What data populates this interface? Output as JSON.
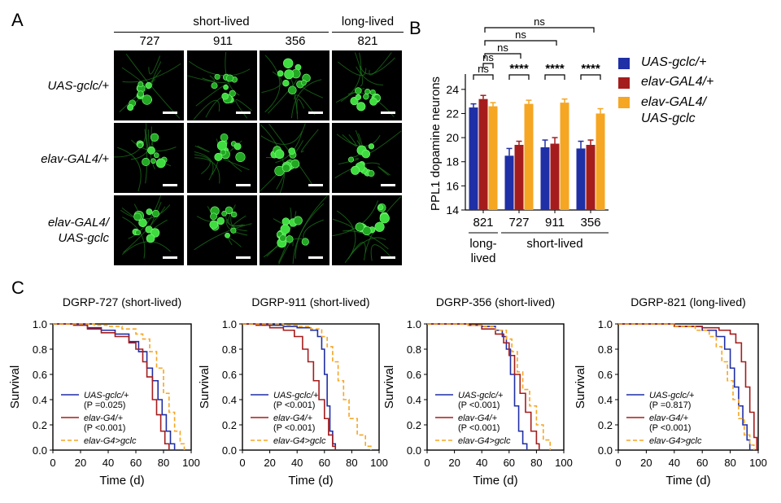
{
  "panels": {
    "a": "A",
    "b": "B",
    "c": "C"
  },
  "panelA": {
    "group_short": "short-lived",
    "group_long": "long-lived",
    "strains": [
      "727",
      "911",
      "356",
      "821"
    ],
    "rows": [
      "UAS-gclc/+",
      "elav-GAL4/+",
      "elav-GAL4/\nUAS-gclc"
    ]
  },
  "colors": {
    "uas": "#1f2fa6",
    "elav": "#a51c1c",
    "cross": "#f5a623"
  },
  "chart_data": [
    {
      "type": "bar",
      "panel": "B",
      "ylabel": "PPL1 dopamine neurons",
      "ylim": [
        14,
        25
      ],
      "yticks": [
        14,
        16,
        18,
        20,
        22,
        24
      ],
      "categories": [
        "821",
        "727",
        "911",
        "356"
      ],
      "group_labels": [
        {
          "label": "long-\nlived",
          "categories": [
            "821"
          ]
        },
        {
          "label": "short-lived",
          "categories": [
            "727",
            "911",
            "356"
          ]
        }
      ],
      "series": [
        {
          "name": "UAS-gclc/+",
          "values": [
            22.5,
            18.5,
            19.2,
            19.1
          ],
          "err": [
            0.3,
            0.6,
            0.6,
            0.6
          ]
        },
        {
          "name": "elav-GAL4/+",
          "values": [
            23.2,
            19.4,
            19.5,
            19.4
          ],
          "err": [
            0.3,
            0.3,
            0.5,
            0.4
          ]
        },
        {
          "name": "elav-GAL4/\nUAS-gclc",
          "values": [
            22.6,
            22.8,
            22.9,
            22.0
          ],
          "err": [
            0.3,
            0.3,
            0.3,
            0.4
          ]
        }
      ],
      "annotations": [
        "ns",
        "ns",
        "****",
        "****",
        "****",
        "ns",
        "ns",
        "ns"
      ]
    },
    {
      "type": "line",
      "panel": "C1",
      "title": "DGRP-727 (short-lived)",
      "xlabel": "Time  (d)",
      "ylabel": "Survival",
      "xlim": [
        0,
        100
      ],
      "ylim": [
        0,
        1.0
      ],
      "xticks": [
        0,
        20,
        40,
        60,
        80,
        100
      ],
      "yticks": [
        0.0,
        0.2,
        0.4,
        0.6,
        0.8,
        1.0
      ],
      "legend": [
        "UAS-gclc/+",
        "(P =0.025)",
        "elav-G4/+",
        "(P <0.001)",
        "elav-G4>gclc"
      ],
      "series": [
        {
          "name": "UAS-gclc/+",
          "points": [
            [
              0,
              1
            ],
            [
              15,
              1
            ],
            [
              25,
              0.97
            ],
            [
              35,
              0.95
            ],
            [
              45,
              0.92
            ],
            [
              55,
              0.86
            ],
            [
              62,
              0.78
            ],
            [
              68,
              0.65
            ],
            [
              72,
              0.55
            ],
            [
              76,
              0.4
            ],
            [
              79,
              0.28
            ],
            [
              82,
              0.15
            ],
            [
              85,
              0.05
            ],
            [
              88,
              0
            ]
          ]
        },
        {
          "name": "elav-G4/+",
          "points": [
            [
              0,
              1
            ],
            [
              15,
              0.99
            ],
            [
              25,
              0.96
            ],
            [
              35,
              0.93
            ],
            [
              45,
              0.9
            ],
            [
              55,
              0.85
            ],
            [
              60,
              0.8
            ],
            [
              65,
              0.7
            ],
            [
              68,
              0.58
            ],
            [
              72,
              0.4
            ],
            [
              75,
              0.28
            ],
            [
              78,
              0.15
            ],
            [
              81,
              0.05
            ],
            [
              84,
              0
            ]
          ]
        },
        {
          "name": "elav-G4>gclc",
          "points": [
            [
              0,
              1
            ],
            [
              20,
              1
            ],
            [
              30,
              0.99
            ],
            [
              40,
              0.98
            ],
            [
              50,
              0.96
            ],
            [
              60,
              0.92
            ],
            [
              65,
              0.88
            ],
            [
              70,
              0.78
            ],
            [
              75,
              0.65
            ],
            [
              80,
              0.45
            ],
            [
              84,
              0.3
            ],
            [
              88,
              0.15
            ],
            [
              92,
              0.05
            ],
            [
              95,
              0
            ]
          ]
        }
      ]
    },
    {
      "type": "line",
      "panel": "C2",
      "title": "DGRP-911 (short-lived)",
      "xlabel": "Time  (d)",
      "ylabel": "Survival",
      "xlim": [
        0,
        100
      ],
      "ylim": [
        0,
        1.0
      ],
      "xticks": [
        0,
        20,
        40,
        60,
        80,
        100
      ],
      "yticks": [
        0.0,
        0.2,
        0.4,
        0.6,
        0.8,
        1.0
      ],
      "legend": [
        "UAS-gclc/+",
        "(P <0.001)",
        "elav-G4/+",
        "(P <0.001)",
        "elav-G4>gclc"
      ],
      "series": [
        {
          "name": "UAS-gclc/+",
          "points": [
            [
              0,
              1
            ],
            [
              10,
              1
            ],
            [
              20,
              0.99
            ],
            [
              30,
              0.98
            ],
            [
              40,
              0.97
            ],
            [
              50,
              0.95
            ],
            [
              55,
              0.9
            ],
            [
              58,
              0.8
            ],
            [
              60,
              0.6
            ],
            [
              62,
              0.35
            ],
            [
              64,
              0.15
            ],
            [
              66,
              0.05
            ],
            [
              68,
              0
            ]
          ]
        },
        {
          "name": "elav-G4/+",
          "points": [
            [
              0,
              1
            ],
            [
              10,
              0.99
            ],
            [
              20,
              0.97
            ],
            [
              30,
              0.95
            ],
            [
              38,
              0.9
            ],
            [
              44,
              0.8
            ],
            [
              48,
              0.7
            ],
            [
              52,
              0.55
            ],
            [
              56,
              0.4
            ],
            [
              60,
              0.25
            ],
            [
              63,
              0.12
            ],
            [
              66,
              0.03
            ],
            [
              68,
              0
            ]
          ]
        },
        {
          "name": "elav-G4>gclc",
          "points": [
            [
              0,
              1
            ],
            [
              20,
              1
            ],
            [
              30,
              0.99
            ],
            [
              40,
              0.98
            ],
            [
              50,
              0.96
            ],
            [
              58,
              0.9
            ],
            [
              62,
              0.82
            ],
            [
              66,
              0.7
            ],
            [
              70,
              0.55
            ],
            [
              74,
              0.4
            ],
            [
              78,
              0.25
            ],
            [
              84,
              0.12
            ],
            [
              90,
              0.03
            ],
            [
              94,
              0
            ]
          ]
        }
      ]
    },
    {
      "type": "line",
      "panel": "C3",
      "title": "DGRP-356 (short-lived)",
      "xlabel": "Time  (d)",
      "ylabel": "Survival",
      "xlim": [
        0,
        100
      ],
      "ylim": [
        0,
        1.0
      ],
      "xticks": [
        0,
        20,
        40,
        60,
        80,
        100
      ],
      "yticks": [
        0.0,
        0.2,
        0.4,
        0.6,
        0.8,
        1.0
      ],
      "legend": [
        "UAS-gclc/+",
        "(P <0.001)",
        "elav-G4/+",
        "(P <0.001)",
        "elav-G4>gclc"
      ],
      "series": [
        {
          "name": "UAS-gclc/+",
          "points": [
            [
              0,
              1
            ],
            [
              20,
              1
            ],
            [
              30,
              0.99
            ],
            [
              40,
              0.98
            ],
            [
              50,
              0.95
            ],
            [
              55,
              0.9
            ],
            [
              58,
              0.8
            ],
            [
              61,
              0.6
            ],
            [
              64,
              0.35
            ],
            [
              67,
              0.15
            ],
            [
              70,
              0.05
            ],
            [
              73,
              0
            ]
          ]
        },
        {
          "name": "elav-G4/+",
          "points": [
            [
              0,
              1
            ],
            [
              20,
              1
            ],
            [
              30,
              0.99
            ],
            [
              40,
              0.96
            ],
            [
              50,
              0.92
            ],
            [
              56,
              0.85
            ],
            [
              60,
              0.75
            ],
            [
              64,
              0.6
            ],
            [
              68,
              0.45
            ],
            [
              72,
              0.3
            ],
            [
              76,
              0.15
            ],
            [
              80,
              0.05
            ],
            [
              82,
              0
            ]
          ]
        },
        {
          "name": "elav-G4>gclc",
          "points": [
            [
              0,
              1
            ],
            [
              20,
              1
            ],
            [
              30,
              0.99
            ],
            [
              40,
              0.98
            ],
            [
              50,
              0.95
            ],
            [
              58,
              0.88
            ],
            [
              62,
              0.78
            ],
            [
              66,
              0.62
            ],
            [
              70,
              0.48
            ],
            [
              75,
              0.35
            ],
            [
              80,
              0.2
            ],
            [
              85,
              0.08
            ],
            [
              90,
              0
            ]
          ]
        }
      ]
    },
    {
      "type": "line",
      "panel": "C4",
      "title": "DGRP-821 (long-lived)",
      "xlabel": "Time  (d)",
      "ylabel": "Survival",
      "xlim": [
        0,
        100
      ],
      "ylim": [
        0,
        1.0
      ],
      "xticks": [
        0,
        20,
        40,
        60,
        80,
        100
      ],
      "yticks": [
        0.0,
        0.2,
        0.4,
        0.6,
        0.8,
        1.0
      ],
      "legend": [
        "UAS-gclc/+",
        "(P =0.817)",
        "elav-G4/+",
        "(P <0.001)",
        "elav-G4>gclc"
      ],
      "series": [
        {
          "name": "UAS-gclc/+",
          "points": [
            [
              0,
              1
            ],
            [
              20,
              1
            ],
            [
              40,
              0.98
            ],
            [
              60,
              0.95
            ],
            [
              70,
              0.9
            ],
            [
              76,
              0.8
            ],
            [
              80,
              0.65
            ],
            [
              83,
              0.5
            ],
            [
              86,
              0.35
            ],
            [
              89,
              0.2
            ],
            [
              92,
              0.08
            ],
            [
              94,
              0
            ]
          ]
        },
        {
          "name": "elav-G4/+",
          "points": [
            [
              0,
              1
            ],
            [
              20,
              1
            ],
            [
              40,
              0.98
            ],
            [
              60,
              0.97
            ],
            [
              72,
              0.95
            ],
            [
              80,
              0.92
            ],
            [
              84,
              0.85
            ],
            [
              88,
              0.7
            ],
            [
              91,
              0.5
            ],
            [
              94,
              0.3
            ],
            [
              97,
              0.1
            ],
            [
              99,
              0
            ]
          ]
        },
        {
          "name": "elav-G4>gclc",
          "points": [
            [
              0,
              1
            ],
            [
              20,
              1
            ],
            [
              40,
              0.98
            ],
            [
              55,
              0.95
            ],
            [
              65,
              0.9
            ],
            [
              70,
              0.82
            ],
            [
              74,
              0.7
            ],
            [
              78,
              0.55
            ],
            [
              82,
              0.4
            ],
            [
              86,
              0.25
            ],
            [
              90,
              0.12
            ],
            [
              94,
              0.04
            ],
            [
              97,
              0
            ]
          ]
        }
      ]
    }
  ]
}
